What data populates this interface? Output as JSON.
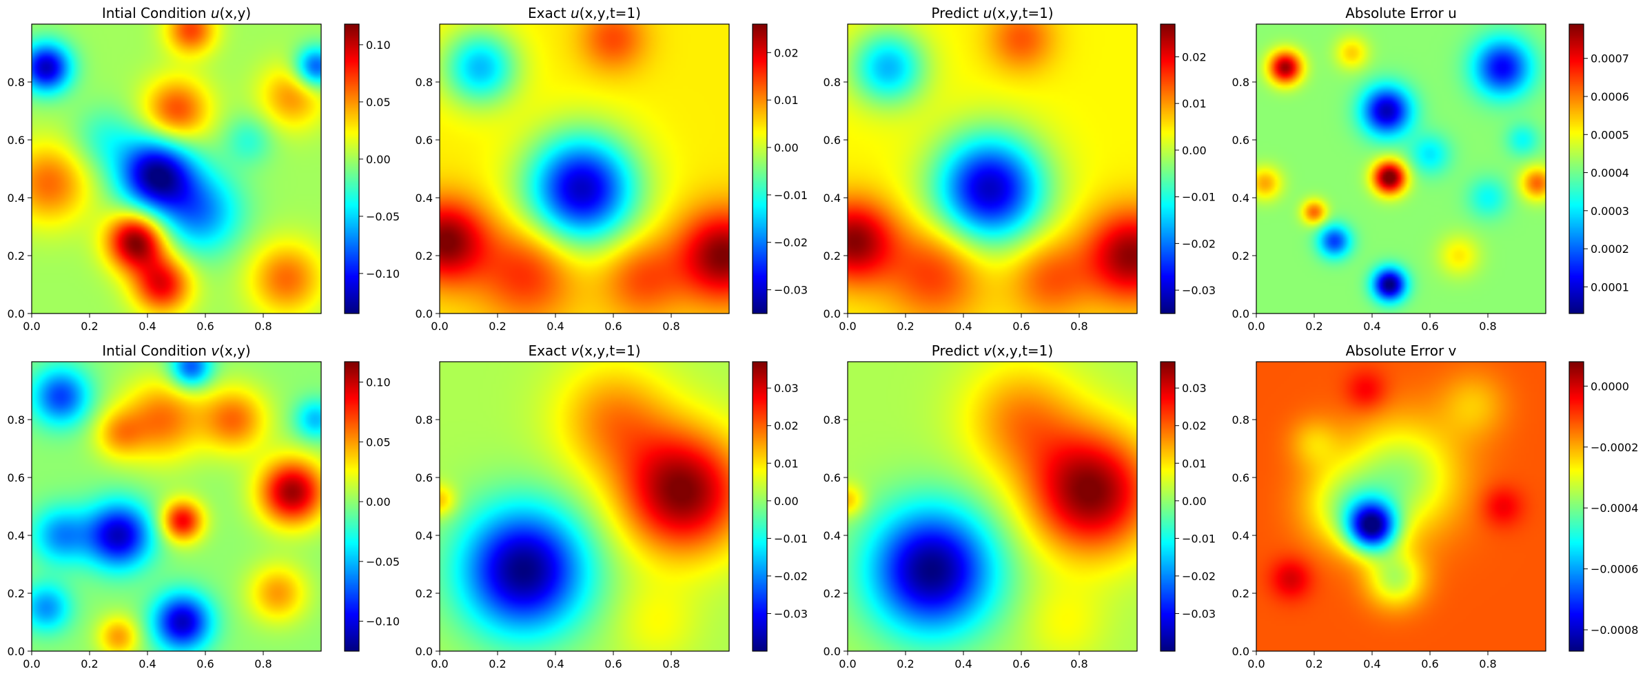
{
  "chart_data": [
    {
      "type": "heatmap",
      "title": "Intial Condition u(x,y)",
      "title_parts": {
        "prefix": "Intial Condition ",
        "var": "u",
        "args": "(x,y)"
      },
      "colormap": "jet",
      "xlim": [
        0,
        1
      ],
      "ylim": [
        0,
        1
      ],
      "xticks": [
        "0.0",
        "0.2",
        "0.4",
        "0.6",
        "0.8"
      ],
      "yticks": [
        "0.0",
        "0.2",
        "0.4",
        "0.6",
        "0.8"
      ],
      "colorbar": {
        "min": -0.135,
        "max": 0.118,
        "ticks": [
          0.1,
          0.05,
          0.0,
          -0.05,
          -0.1
        ],
        "tick_labels": [
          "0.10",
          "0.05",
          "0.00",
          "−0.05",
          "−0.10"
        ]
      },
      "field": {
        "base": 0.0,
        "blobs": [
          [
            0.43,
            0.48,
            0.09,
            -0.13
          ],
          [
            0.58,
            0.35,
            0.1,
            -0.07
          ],
          [
            0.36,
            0.25,
            0.07,
            0.12
          ],
          [
            0.45,
            0.1,
            0.07,
            0.09
          ],
          [
            0.05,
            0.85,
            0.06,
            -0.12
          ],
          [
            0.98,
            0.85,
            0.05,
            -0.09
          ],
          [
            0.5,
            0.7,
            0.08,
            0.07
          ],
          [
            0.06,
            0.45,
            0.1,
            0.06
          ],
          [
            0.9,
            0.75,
            0.08,
            0.05
          ],
          [
            0.88,
            0.12,
            0.09,
            0.06
          ],
          [
            0.55,
            0.98,
            0.06,
            0.07
          ],
          [
            0.25,
            0.6,
            0.08,
            -0.03
          ],
          [
            0.75,
            0.6,
            0.06,
            -0.03
          ]
        ]
      }
    },
    {
      "type": "heatmap",
      "title": "Exact u(x,y,t=1)",
      "title_parts": {
        "prefix": "Exact ",
        "var": "u",
        "args": "(x,y,t=1)"
      },
      "colormap": "jet",
      "xlim": [
        0,
        1
      ],
      "ylim": [
        0,
        1
      ],
      "xticks": [
        "0.0",
        "0.2",
        "0.4",
        "0.6",
        "0.8"
      ],
      "yticks": [
        "0.0",
        "0.2",
        "0.4",
        "0.6",
        "0.8"
      ],
      "colorbar": {
        "min": -0.035,
        "max": 0.026,
        "ticks": [
          0.02,
          0.01,
          0.0,
          -0.01,
          -0.02,
          -0.03
        ],
        "tick_labels": [
          "0.02",
          "0.01",
          "0.00",
          "−0.01",
          "−0.02",
          "−0.03"
        ]
      },
      "field": {
        "base": 0.004,
        "blobs": [
          [
            0.49,
            0.43,
            0.13,
            -0.035
          ],
          [
            0.14,
            0.85,
            0.09,
            -0.02
          ],
          [
            0.98,
            0.2,
            0.11,
            0.022
          ],
          [
            0.02,
            0.25,
            0.1,
            0.022
          ],
          [
            0.3,
            0.14,
            0.12,
            0.012
          ],
          [
            0.7,
            0.12,
            0.1,
            0.01
          ],
          [
            0.6,
            0.95,
            0.08,
            0.01
          ]
        ]
      }
    },
    {
      "type": "heatmap",
      "title": "Predict u(x,y,t=1)",
      "title_parts": {
        "prefix": "Predict ",
        "var": "u",
        "args": "(x,y,t=1)"
      },
      "colormap": "jet",
      "xlim": [
        0,
        1
      ],
      "ylim": [
        0,
        1
      ],
      "xticks": [
        "0.0",
        "0.2",
        "0.4",
        "0.6",
        "0.8"
      ],
      "yticks": [
        "0.0",
        "0.2",
        "0.4",
        "0.6",
        "0.8"
      ],
      "colorbar": {
        "min": -0.035,
        "max": 0.027,
        "ticks": [
          0.02,
          0.01,
          0.0,
          -0.01,
          -0.02,
          -0.03
        ],
        "tick_labels": [
          "0.02",
          "0.01",
          "0.00",
          "−0.01",
          "−0.02",
          "−0.03"
        ]
      },
      "field": {
        "base": 0.004,
        "blobs": [
          [
            0.49,
            0.43,
            0.13,
            -0.035
          ],
          [
            0.14,
            0.85,
            0.09,
            -0.02
          ],
          [
            0.98,
            0.2,
            0.11,
            0.022
          ],
          [
            0.02,
            0.25,
            0.1,
            0.022
          ],
          [
            0.3,
            0.14,
            0.12,
            0.012
          ],
          [
            0.7,
            0.12,
            0.1,
            0.01
          ],
          [
            0.6,
            0.95,
            0.08,
            0.01
          ]
        ]
      }
    },
    {
      "type": "heatmap",
      "title": "Absolute Error u",
      "colormap": "jet",
      "xlim": [
        0,
        1
      ],
      "ylim": [
        0,
        1
      ],
      "xticks": [
        "0.0",
        "0.2",
        "0.4",
        "0.6",
        "0.8"
      ],
      "yticks": [
        "0.0",
        "0.2",
        "0.4",
        "0.6",
        "0.8"
      ],
      "colorbar": {
        "min": 3e-05,
        "max": 0.00079,
        "ticks": [
          0.0007,
          0.0006,
          0.0005,
          0.0004,
          0.0003,
          0.0002,
          0.0001
        ],
        "tick_labels": [
          "0.0007",
          "0.0006",
          "0.0005",
          "0.0004",
          "0.0003",
          "0.0002",
          "0.0001"
        ]
      },
      "field": {
        "base": 0.00042,
        "blobs": [
          [
            0.1,
            0.85,
            0.04,
            0.00035
          ],
          [
            0.45,
            0.7,
            0.06,
            -0.00035
          ],
          [
            0.85,
            0.85,
            0.07,
            -0.0003
          ],
          [
            0.46,
            0.47,
            0.04,
            0.0004
          ],
          [
            0.46,
            0.1,
            0.04,
            -0.0004
          ],
          [
            0.27,
            0.25,
            0.04,
            -0.00025
          ],
          [
            0.2,
            0.35,
            0.03,
            0.0002
          ],
          [
            0.97,
            0.45,
            0.04,
            0.0002
          ],
          [
            0.6,
            0.55,
            0.05,
            -0.00012
          ],
          [
            0.8,
            0.4,
            0.05,
            -0.0001
          ],
          [
            0.7,
            0.2,
            0.05,
            0.0001
          ],
          [
            0.92,
            0.6,
            0.04,
            -0.0001
          ],
          [
            0.33,
            0.9,
            0.04,
            0.00012
          ],
          [
            0.03,
            0.45,
            0.04,
            0.00015
          ]
        ]
      }
    },
    {
      "type": "heatmap",
      "title": "Intial Condition v(x,y)",
      "title_parts": {
        "prefix": "Intial Condition ",
        "var": "v",
        "args": "(x,y)"
      },
      "colormap": "jet",
      "xlim": [
        0,
        1
      ],
      "ylim": [
        0,
        1
      ],
      "xticks": [
        "0.0",
        "0.2",
        "0.4",
        "0.6",
        "0.8"
      ],
      "yticks": [
        "0.0",
        "0.2",
        "0.4",
        "0.6",
        "0.8"
      ],
      "colorbar": {
        "min": -0.125,
        "max": 0.117,
        "ticks": [
          0.1,
          0.05,
          0.0,
          -0.05,
          -0.1
        ],
        "tick_labels": [
          "0.10",
          "0.05",
          "0.00",
          "−0.05",
          "−0.10"
        ]
      },
      "field": {
        "base": 0.0,
        "blobs": [
          [
            0.3,
            0.4,
            0.08,
            -0.11
          ],
          [
            0.52,
            0.1,
            0.07,
            -0.11
          ],
          [
            0.1,
            0.88,
            0.07,
            -0.08
          ],
          [
            0.1,
            0.4,
            0.07,
            -0.06
          ],
          [
            0.05,
            0.15,
            0.06,
            -0.06
          ],
          [
            0.55,
            0.98,
            0.05,
            -0.08
          ],
          [
            0.9,
            0.55,
            0.08,
            0.11
          ],
          [
            0.52,
            0.45,
            0.05,
            0.09
          ],
          [
            0.45,
            0.8,
            0.1,
            0.06
          ],
          [
            0.7,
            0.8,
            0.08,
            0.06
          ],
          [
            0.3,
            0.75,
            0.06,
            0.04
          ],
          [
            0.85,
            0.2,
            0.07,
            0.05
          ],
          [
            0.3,
            0.05,
            0.05,
            0.05
          ],
          [
            0.98,
            0.8,
            0.05,
            -0.05
          ]
        ]
      }
    },
    {
      "type": "heatmap",
      "title": "Exact v(x,y,t=1)",
      "title_parts": {
        "prefix": "Exact ",
        "var": "v",
        "args": "(x,y,t=1)"
      },
      "colormap": "jet",
      "xlim": [
        0,
        1
      ],
      "ylim": [
        0,
        1
      ],
      "xticks": [
        "0.0",
        "0.2",
        "0.4",
        "0.6",
        "0.8"
      ],
      "yticks": [
        "0.0",
        "0.2",
        "0.4",
        "0.6",
        "0.8"
      ],
      "colorbar": {
        "min": -0.04,
        "max": 0.037,
        "ticks": [
          0.03,
          0.02,
          0.01,
          0.0,
          -0.01,
          -0.02,
          -0.03
        ],
        "tick_labels": [
          "0.03",
          "0.02",
          "0.01",
          "0.00",
          "−0.01",
          "−0.02",
          "−0.03"
        ]
      },
      "field": {
        "base": 0.002,
        "blobs": [
          [
            0.29,
            0.28,
            0.15,
            -0.042
          ],
          [
            0.84,
            0.55,
            0.15,
            0.035
          ],
          [
            0.6,
            0.8,
            0.14,
            0.015
          ],
          [
            0.0,
            0.52,
            0.04,
            0.012
          ],
          [
            0.75,
            0.1,
            0.1,
            0.006
          ]
        ]
      }
    },
    {
      "type": "heatmap",
      "title": "Predict v(x,y,t=1)",
      "title_parts": {
        "prefix": "Predict ",
        "var": "v",
        "args": "(x,y,t=1)"
      },
      "colormap": "jet",
      "xlim": [
        0,
        1
      ],
      "ylim": [
        0,
        1
      ],
      "xticks": [
        "0.0",
        "0.2",
        "0.4",
        "0.6",
        "0.8"
      ],
      "yticks": [
        "0.0",
        "0.2",
        "0.4",
        "0.6",
        "0.8"
      ],
      "colorbar": {
        "min": -0.04,
        "max": 0.037,
        "ticks": [
          0.03,
          0.02,
          0.01,
          0.0,
          -0.01,
          -0.02,
          -0.03
        ],
        "tick_labels": [
          "0.03",
          "0.02",
          "0.01",
          "0.00",
          "−0.01",
          "−0.02",
          "−0.03"
        ]
      },
      "field": {
        "base": 0.002,
        "blobs": [
          [
            0.29,
            0.28,
            0.15,
            -0.042
          ],
          [
            0.84,
            0.55,
            0.15,
            0.035
          ],
          [
            0.6,
            0.8,
            0.14,
            0.015
          ],
          [
            0.0,
            0.52,
            0.04,
            0.012
          ],
          [
            0.75,
            0.1,
            0.1,
            0.006
          ]
        ]
      }
    },
    {
      "type": "heatmap",
      "title": "Absolute Error v",
      "colormap": "jet",
      "xlim": [
        0,
        1
      ],
      "ylim": [
        0,
        1
      ],
      "xticks": [
        "0.0",
        "0.2",
        "0.4",
        "0.6",
        "0.8"
      ],
      "yticks": [
        "0.0",
        "0.2",
        "0.4",
        "0.6",
        "0.8"
      ],
      "colorbar": {
        "min": -0.00087,
        "max": 8e-05,
        "ticks": [
          0.0,
          -0.0002,
          -0.0004,
          -0.0006,
          -0.0008
        ],
        "tick_labels": [
          "0.0000",
          "−0.0002",
          "−0.0004",
          "−0.0006",
          "−0.0008"
        ]
      },
      "field": {
        "base": -0.00012,
        "blobs": [
          [
            0.4,
            0.43,
            0.06,
            -0.0006
          ],
          [
            0.5,
            0.6,
            0.14,
            -0.00025
          ],
          [
            0.3,
            0.5,
            0.1,
            -0.00018
          ],
          [
            0.48,
            0.25,
            0.07,
            -0.00022
          ],
          [
            0.12,
            0.25,
            0.05,
            0.00012
          ],
          [
            0.38,
            0.9,
            0.05,
            0.0001
          ],
          [
            0.85,
            0.5,
            0.05,
            0.0001
          ],
          [
            0.75,
            0.85,
            0.08,
            -0.0001
          ],
          [
            0.2,
            0.72,
            0.06,
            -0.0001
          ]
        ]
      }
    }
  ]
}
